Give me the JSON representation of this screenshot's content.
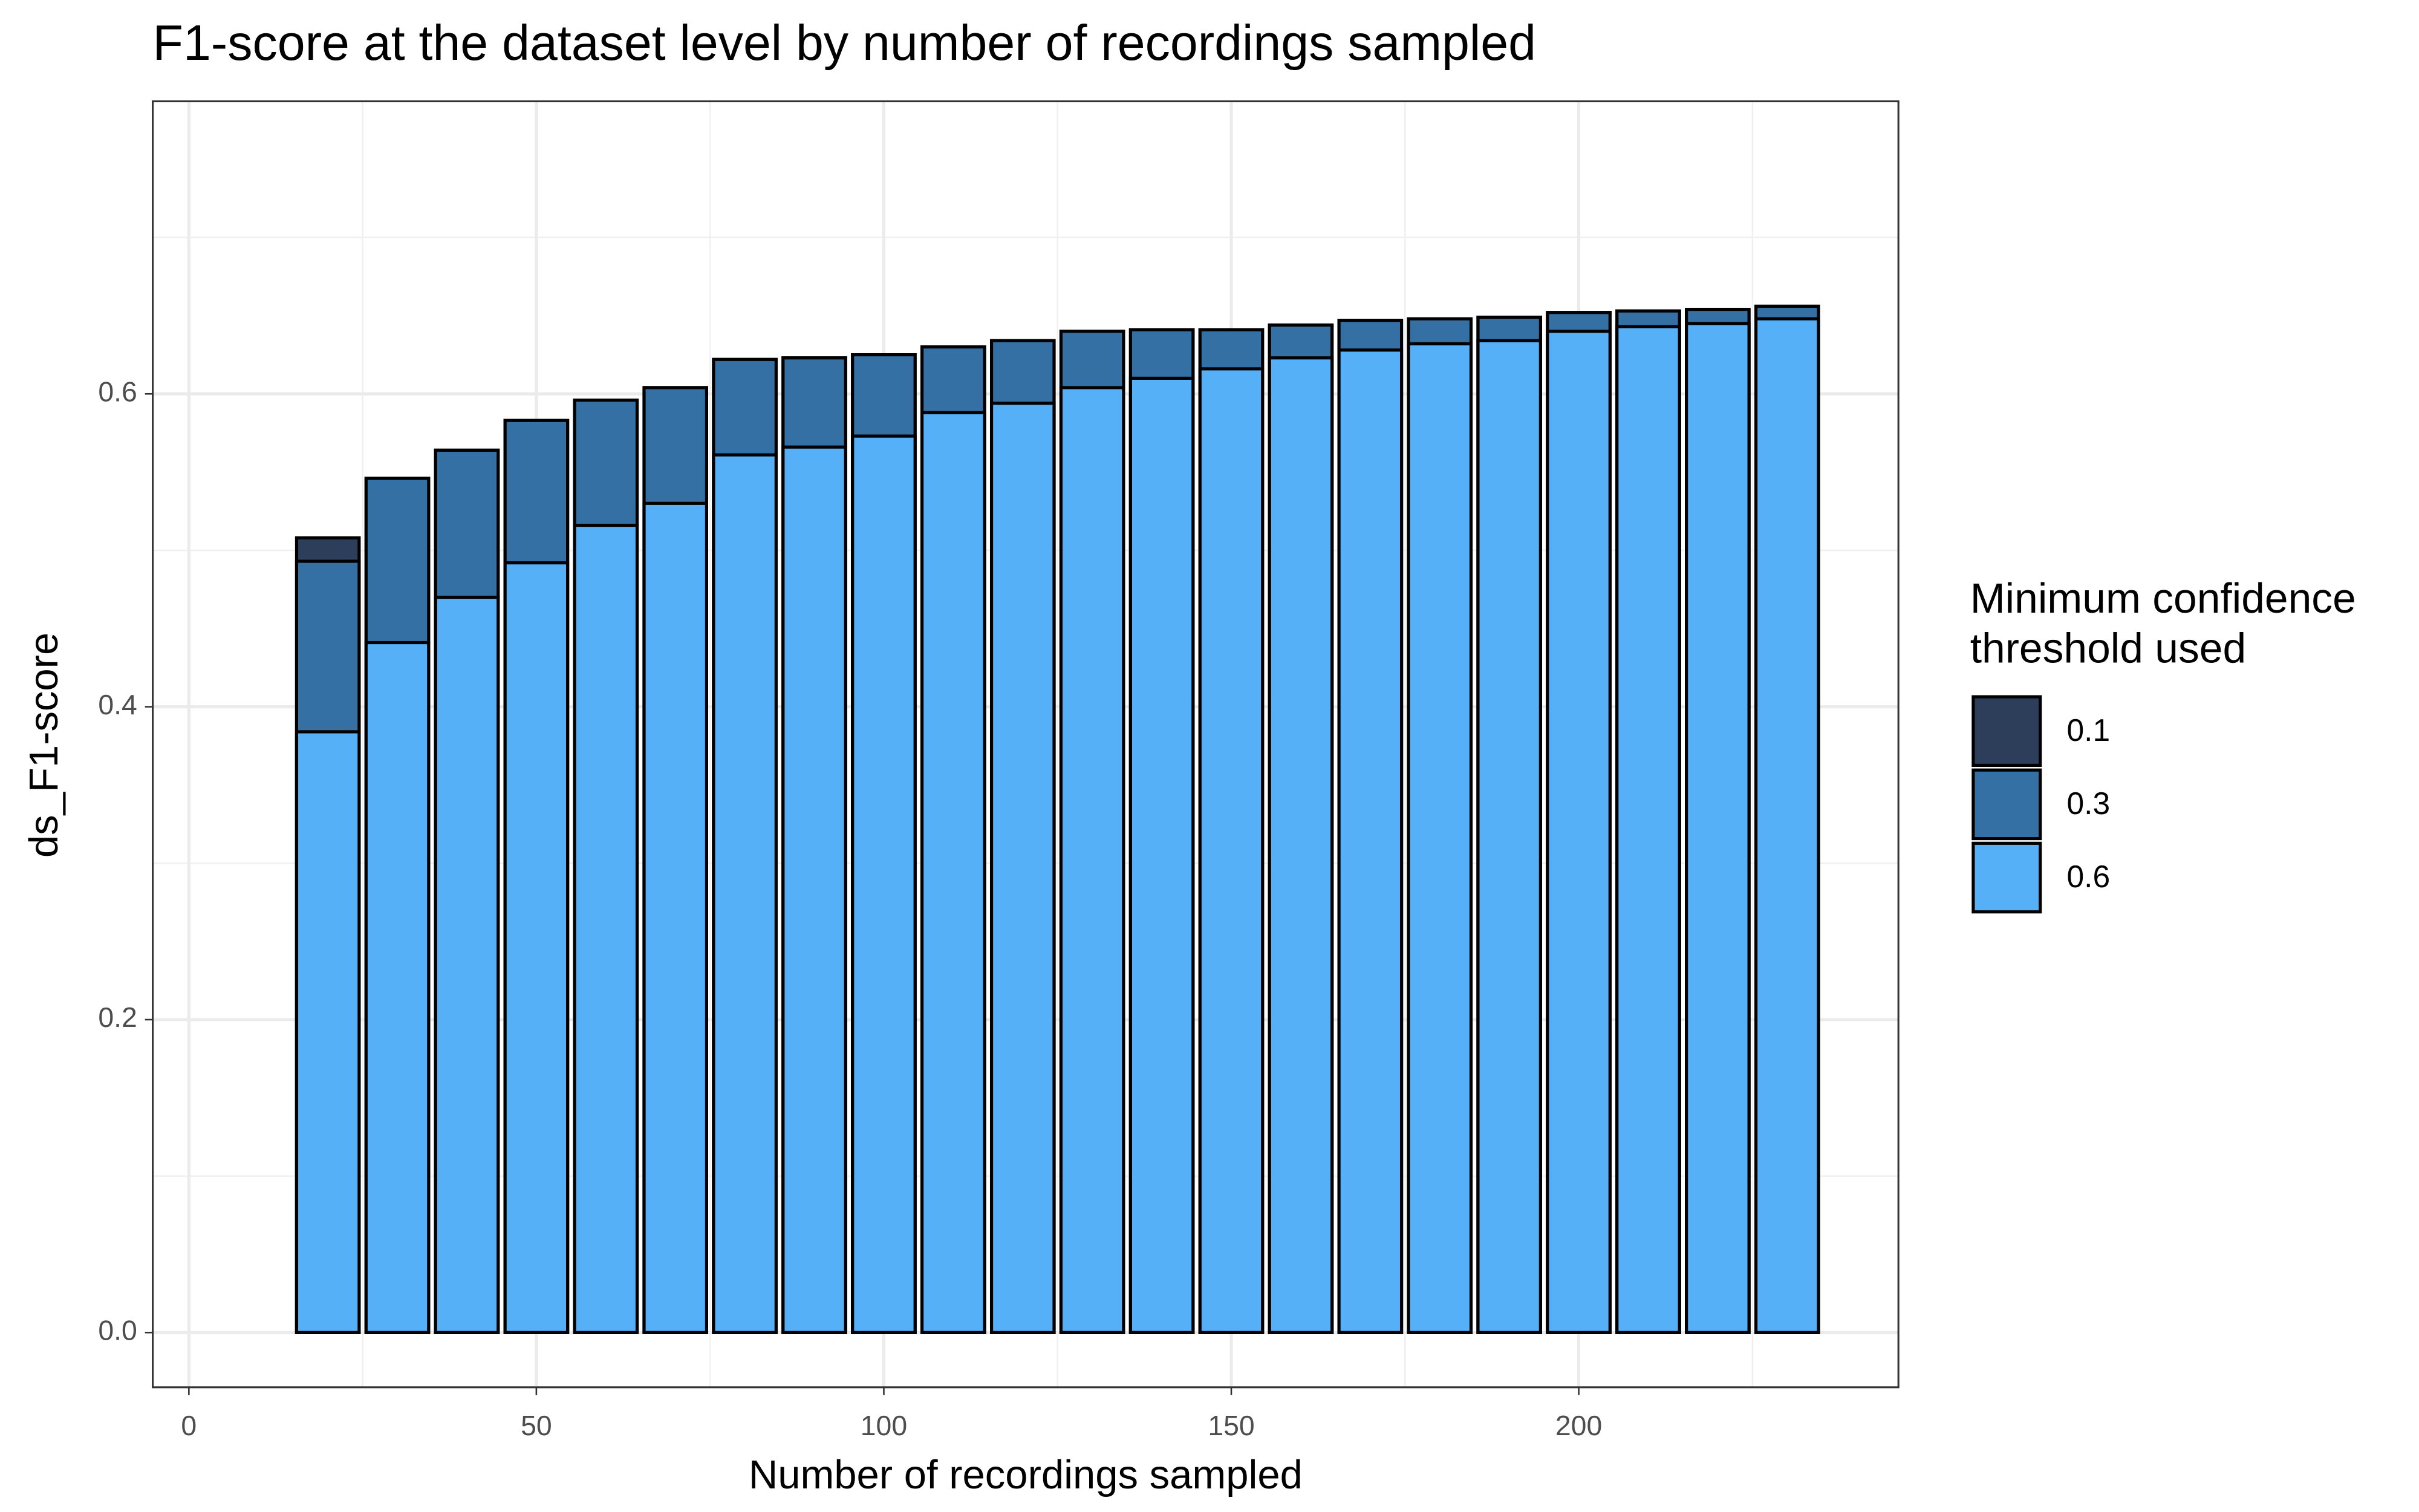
{
  "chart_data": {
    "type": "bar",
    "title": "F1-score at the dataset level by number of recordings sampled",
    "x_label": "Number of recordings sampled",
    "y_label": "ds_F1-score",
    "legend_title": [
      "Minimum confidence",
      "threshold used"
    ],
    "legend_position": "right",
    "x": [
      20,
      30,
      40,
      50,
      60,
      70,
      80,
      90,
      100,
      110,
      120,
      130,
      140,
      150,
      160,
      170,
      180,
      190,
      200,
      210,
      220,
      230
    ],
    "series": [
      {
        "name": "0.1",
        "color": "#2c3e5a",
        "values": [
          0.508,
          0.546,
          0.564,
          0.583,
          0.596,
          0.604,
          0.622,
          0.623,
          0.625,
          0.63,
          0.634,
          0.64,
          0.641,
          0.641,
          0.644,
          0.647,
          0.648,
          0.649,
          0.652,
          0.653,
          0.654,
          0.656
        ]
      },
      {
        "name": "0.3",
        "color": "#3470a3",
        "values": [
          0.493,
          0.546,
          0.564,
          0.583,
          0.596,
          0.604,
          0.622,
          0.623,
          0.625,
          0.63,
          0.634,
          0.64,
          0.641,
          0.641,
          0.644,
          0.647,
          0.648,
          0.649,
          0.652,
          0.653,
          0.654,
          0.656
        ]
      },
      {
        "name": "0.6",
        "color": "#56b0f7",
        "values": [
          0.384,
          0.441,
          0.47,
          0.492,
          0.516,
          0.53,
          0.561,
          0.566,
          0.573,
          0.588,
          0.594,
          0.604,
          0.61,
          0.616,
          0.623,
          0.628,
          0.632,
          0.634,
          0.64,
          0.643,
          0.645,
          0.648
        ]
      }
    ],
    "xlim": [
      -5.2,
      246
    ],
    "ylim": [
      -0.035,
      0.787
    ],
    "xticks": [
      0,
      50,
      100,
      150,
      200
    ],
    "yticks": [
      {
        "value": 0,
        "label": "0.0"
      },
      0.2,
      0.4,
      0.6
    ],
    "x_minor_ticks": [
      25,
      75,
      125,
      175,
      225
    ],
    "y_minor_ticks": [
      0.1,
      0.3,
      0.5,
      0.7
    ],
    "grid": true
  }
}
